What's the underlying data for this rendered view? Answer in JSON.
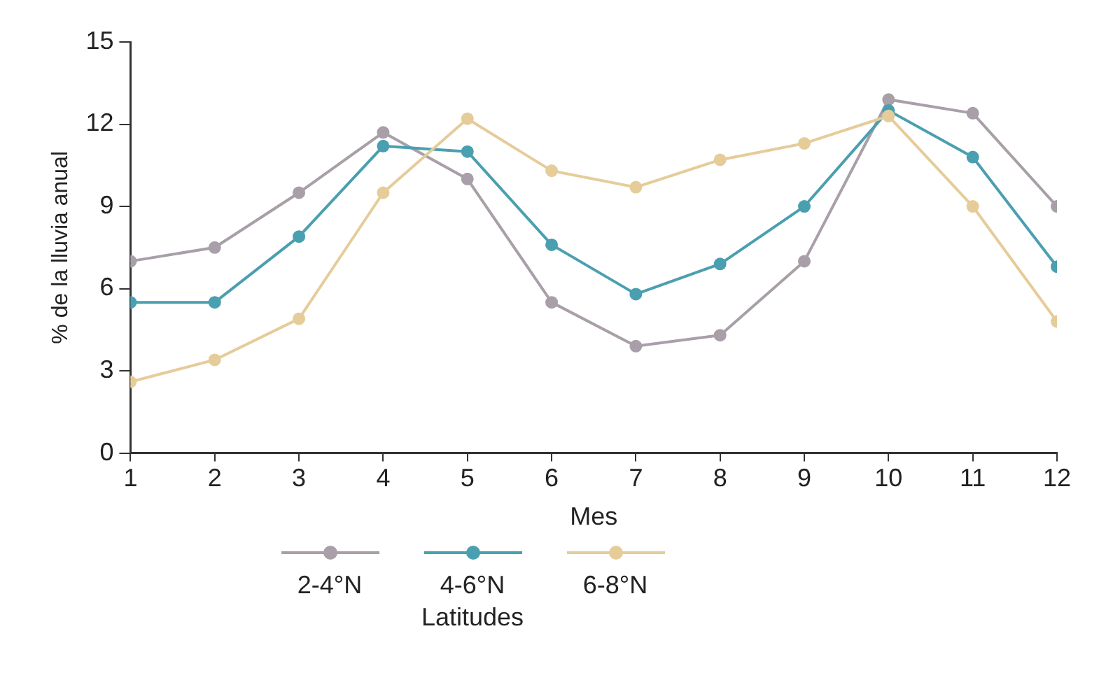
{
  "chart_data": {
    "type": "line",
    "xlabel": "Mes",
    "ylabel": "% de la lluvia anual",
    "legend_title": "Latitudes",
    "x": [
      1,
      2,
      3,
      4,
      5,
      6,
      7,
      8,
      9,
      10,
      11,
      12
    ],
    "xlim": [
      1,
      12
    ],
    "xticks": [
      1,
      2,
      3,
      4,
      5,
      6,
      7,
      8,
      9,
      10,
      11,
      12
    ],
    "ylim": [
      0,
      15
    ],
    "yticks": [
      0,
      3,
      6,
      9,
      12,
      15
    ],
    "grid": false,
    "legend": "bottom",
    "marker": "circle",
    "line_style": "solid",
    "series": [
      {
        "name": "2-4°N",
        "color": "#a89fa8",
        "values": [
          7.0,
          7.5,
          9.5,
          11.7,
          10.0,
          5.5,
          3.9,
          4.3,
          7.0,
          12.9,
          12.4,
          9.0
        ]
      },
      {
        "name": "4-6°N",
        "color": "#4a9fb0",
        "values": [
          5.5,
          5.5,
          7.9,
          11.2,
          11.0,
          7.6,
          5.8,
          6.9,
          9.0,
          12.5,
          10.8,
          6.8
        ]
      },
      {
        "name": "6-8°N",
        "color": "#e5cc99",
        "values": [
          2.6,
          3.4,
          4.9,
          9.5,
          12.2,
          10.3,
          9.7,
          10.7,
          11.3,
          12.3,
          9.0,
          4.8
        ]
      }
    ]
  }
}
